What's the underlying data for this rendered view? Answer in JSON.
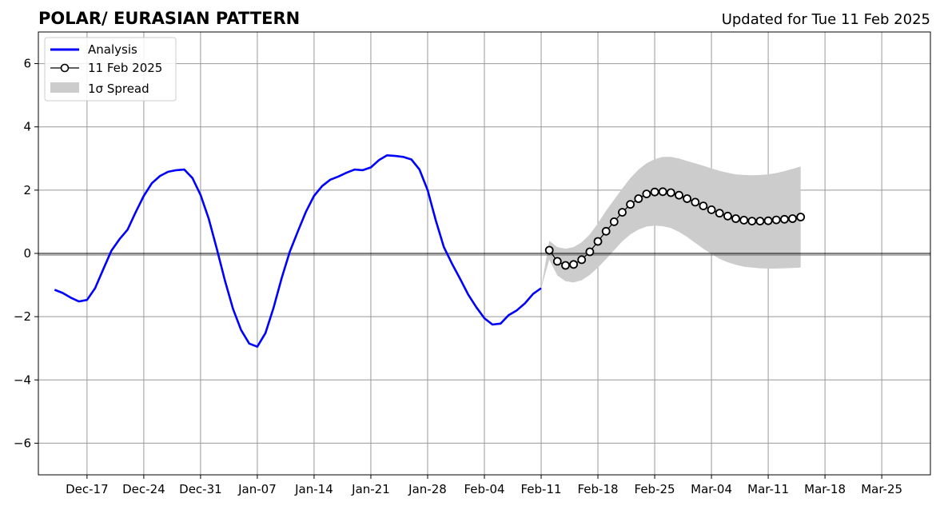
{
  "chart_data": {
    "type": "line",
    "title": "POLAR/ EURASIAN  PATTERN",
    "subtitle": "Updated for Tue 11 Feb 2025",
    "xlabel": "",
    "ylabel": "",
    "ylim": [
      -7,
      7
    ],
    "yticks": [
      -6,
      -4,
      -2,
      0,
      2,
      4,
      6
    ],
    "xlim": [
      "2024-12-11",
      "2025-03-31"
    ],
    "xticks": [
      {
        "date": "2024-12-17",
        "label": "Dec-17"
      },
      {
        "date": "2024-12-24",
        "label": "Dec-24"
      },
      {
        "date": "2024-12-31",
        "label": "Dec-31"
      },
      {
        "date": "2025-01-07",
        "label": "Jan-07"
      },
      {
        "date": "2025-01-14",
        "label": "Jan-14"
      },
      {
        "date": "2025-01-21",
        "label": "Jan-21"
      },
      {
        "date": "2025-01-28",
        "label": "Jan-28"
      },
      {
        "date": "2025-02-04",
        "label": "Feb-04"
      },
      {
        "date": "2025-02-11",
        "label": "Feb-11"
      },
      {
        "date": "2025-02-18",
        "label": "Feb-18"
      },
      {
        "date": "2025-02-25",
        "label": "Feb-25"
      },
      {
        "date": "2025-03-04",
        "label": "Mar-04"
      },
      {
        "date": "2025-03-11",
        "label": "Mar-11"
      },
      {
        "date": "2025-03-18",
        "label": "Mar-18"
      },
      {
        "date": "2025-03-25",
        "label": "Mar-25"
      }
    ],
    "grid": true,
    "legend_position": "top-left",
    "colors": {
      "analysis": "#0000ff",
      "forecast_line": "#000000",
      "forecast_marker_fill": "#ffffff",
      "spread": "#cccccc",
      "grid": "#999999"
    },
    "series": [
      {
        "name": "Analysis",
        "style": "line",
        "start_date": "2024-12-13",
        "values": [
          -1.15,
          -1.25,
          -1.4,
          -1.52,
          -1.47,
          -1.1,
          -0.5,
          0.08,
          0.45,
          0.75,
          1.3,
          1.82,
          2.22,
          2.45,
          2.58,
          2.63,
          2.65,
          2.38,
          1.85,
          1.1,
          0.15,
          -0.85,
          -1.75,
          -2.42,
          -2.85,
          -2.95,
          -2.52,
          -1.72,
          -0.78,
          0.05,
          0.7,
          1.32,
          1.82,
          2.13,
          2.33,
          2.43,
          2.55,
          2.65,
          2.63,
          2.72,
          2.95,
          3.1,
          3.08,
          3.05,
          2.97,
          2.65,
          2.0,
          1.05,
          0.2,
          -0.32,
          -0.8,
          -1.3,
          -1.7,
          -2.05,
          -2.25,
          -2.22,
          -1.95,
          -1.8,
          -1.58,
          -1.28,
          -1.1
        ]
      },
      {
        "name": "11 Feb 2025",
        "style": "line-markers",
        "start_date": "2025-02-12",
        "values": [
          0.1,
          -0.25,
          -0.38,
          -0.35,
          -0.2,
          0.05,
          0.38,
          0.7,
          1.0,
          1.3,
          1.55,
          1.73,
          1.88,
          1.94,
          1.95,
          1.92,
          1.84,
          1.73,
          1.62,
          1.5,
          1.38,
          1.27,
          1.18,
          1.1,
          1.05,
          1.02,
          1.02,
          1.03,
          1.06,
          1.08,
          1.1,
          1.15
        ]
      },
      {
        "name": "1σ Spread",
        "style": "band",
        "start_date": "2025-02-11",
        "upper": [
          -1.1,
          0.4,
          0.2,
          0.15,
          0.2,
          0.35,
          0.6,
          0.95,
          1.35,
          1.7,
          2.05,
          2.38,
          2.65,
          2.85,
          2.98,
          3.05,
          3.05,
          3.0,
          2.92,
          2.85,
          2.77,
          2.69,
          2.61,
          2.55,
          2.5,
          2.48,
          2.47,
          2.48,
          2.5,
          2.54,
          2.6,
          2.67,
          2.75
        ],
        "lower": [
          -1.1,
          -0.2,
          -0.7,
          -0.88,
          -0.92,
          -0.85,
          -0.68,
          -0.45,
          -0.18,
          0.1,
          0.38,
          0.6,
          0.75,
          0.85,
          0.88,
          0.86,
          0.8,
          0.68,
          0.52,
          0.33,
          0.15,
          -0.02,
          -0.17,
          -0.28,
          -0.36,
          -0.42,
          -0.45,
          -0.47,
          -0.48,
          -0.48,
          -0.47,
          -0.46,
          -0.45
        ]
      }
    ]
  }
}
